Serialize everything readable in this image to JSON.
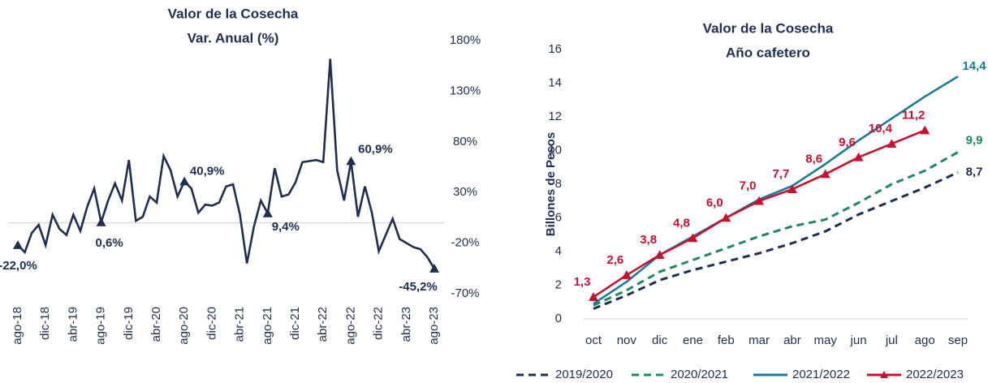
{
  "chart_data": [
    {
      "type": "line",
      "title": "Valor de la Cosecha",
      "subtitle": "Var. Anual (%)",
      "categories": [
        "ago-18",
        null,
        null,
        null,
        "dic-18",
        null,
        null,
        null,
        "abr-19",
        null,
        null,
        null,
        "ago-19",
        null,
        null,
        null,
        "dic-19",
        null,
        null,
        null,
        "abr-20",
        null,
        null,
        null,
        "ago-20",
        null,
        null,
        null,
        "dic-20",
        null,
        null,
        null,
        "abr-21",
        null,
        null,
        null,
        "ago-21",
        null,
        null,
        null,
        "dic-21",
        null,
        null,
        null,
        "abr-22",
        null,
        null,
        null,
        "ago-22",
        null,
        null,
        null,
        "dic-22",
        null,
        null,
        null,
        "abr-23",
        null,
        null,
        null,
        "ago-23"
      ],
      "values": [
        -22.0,
        -29,
        -10,
        -2,
        -22,
        8,
        -6,
        -12,
        8,
        -8,
        16,
        34,
        0.6,
        22,
        39,
        22,
        62,
        2,
        6,
        26,
        20,
        66,
        52,
        26,
        40.9,
        34,
        10,
        18,
        17,
        20,
        36,
        38,
        8,
        -40,
        -4,
        22,
        9.4,
        54,
        26,
        28,
        40,
        60,
        61,
        62,
        60,
        162,
        52,
        22,
        60.9,
        6,
        36,
        10,
        -28,
        -12,
        4,
        -16,
        -20,
        -24,
        -26,
        -34,
        -45.2
      ],
      "value_labels": [
        "-22,0%",
        null,
        null,
        null,
        null,
        null,
        null,
        null,
        null,
        null,
        null,
        null,
        "0,6%",
        null,
        null,
        null,
        null,
        null,
        null,
        null,
        null,
        null,
        null,
        null,
        "40,9%",
        null,
        null,
        null,
        null,
        null,
        null,
        null,
        null,
        null,
        null,
        null,
        "9,4%",
        null,
        null,
        null,
        null,
        null,
        null,
        null,
        null,
        null,
        null,
        null,
        "60,9%",
        null,
        null,
        null,
        null,
        null,
        null,
        null,
        null,
        null,
        null,
        null,
        "-45,2%"
      ],
      "color": "#1f2d50",
      "ylim": [
        -70,
        180
      ],
      "yticks": [
        {
          "value": -70,
          "label": "-70%"
        },
        {
          "value": -20,
          "label": "-20%"
        },
        {
          "value": 30,
          "label": "30%"
        },
        {
          "value": 80,
          "label": "80%"
        },
        {
          "value": 130,
          "label": "130%"
        },
        {
          "value": 180,
          "label": "180%"
        }
      ]
    },
    {
      "type": "line",
      "title": "Valor de la Cosecha",
      "subtitle": "Año cafetero",
      "ylabel": "Billones de Pesos",
      "categories": [
        "oct",
        "nov",
        "dic",
        "ene",
        "feb",
        "mar",
        "abr",
        "may",
        "jun",
        "jul",
        "ago",
        "sep"
      ],
      "ylim": [
        0,
        16
      ],
      "yticks": [
        0,
        2,
        4,
        6,
        8,
        10,
        12,
        14,
        16
      ],
      "legend": "bottom",
      "series": [
        {
          "name": "2019/2020",
          "color": "#1f2d50",
          "dash": true,
          "values": [
            0.6,
            1.4,
            2.3,
            2.9,
            3.4,
            3.9,
            4.5,
            5.2,
            6.2,
            7.0,
            7.8,
            8.7
          ],
          "value_labels": [
            null,
            null,
            null,
            null,
            null,
            null,
            null,
            null,
            null,
            null,
            null,
            "8,7"
          ]
        },
        {
          "name": "2020/2021",
          "color": "#1e8a5a",
          "dash": true,
          "values": [
            0.8,
            1.7,
            2.8,
            3.5,
            4.2,
            4.9,
            5.5,
            5.9,
            6.9,
            8.0,
            8.8,
            9.9
          ],
          "value_labels": [
            null,
            null,
            null,
            null,
            null,
            null,
            null,
            null,
            null,
            null,
            null,
            "9,9"
          ]
        },
        {
          "name": "2021/2022",
          "color": "#1a7a9a",
          "values": [
            0.9,
            2.2,
            3.8,
            4.9,
            6.0,
            7.1,
            7.9,
            9.2,
            10.6,
            11.9,
            13.2,
            14.4
          ],
          "value_labels": [
            null,
            null,
            null,
            null,
            null,
            null,
            null,
            null,
            null,
            null,
            null,
            "14,4"
          ]
        },
        {
          "name": "2022/2023",
          "color": "#c8102e",
          "markers": true,
          "values": [
            1.3,
            2.6,
            3.8,
            4.8,
            6.0,
            7.0,
            7.7,
            8.6,
            9.6,
            10.4,
            11.2,
            null
          ],
          "value_labels": [
            "1,3",
            "2,6",
            "3,8",
            "4,8",
            "6,0",
            "7,0",
            "7,7",
            "8,6",
            "9,6",
            "10,4",
            "11,2",
            null
          ]
        }
      ]
    }
  ]
}
